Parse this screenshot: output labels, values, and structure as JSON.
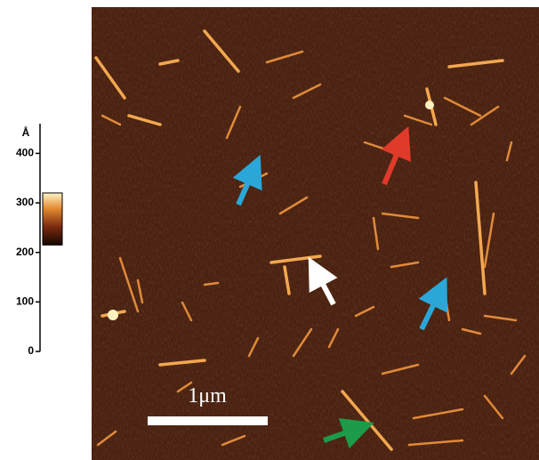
{
  "height_scale": {
    "unit": "Å",
    "lim": [
      0,
      460
    ],
    "ticks": [
      0,
      100,
      200,
      300,
      400
    ],
    "colorbar_range": [
      215,
      320
    ]
  },
  "scale_bar": {
    "label": "1μm"
  }
}
